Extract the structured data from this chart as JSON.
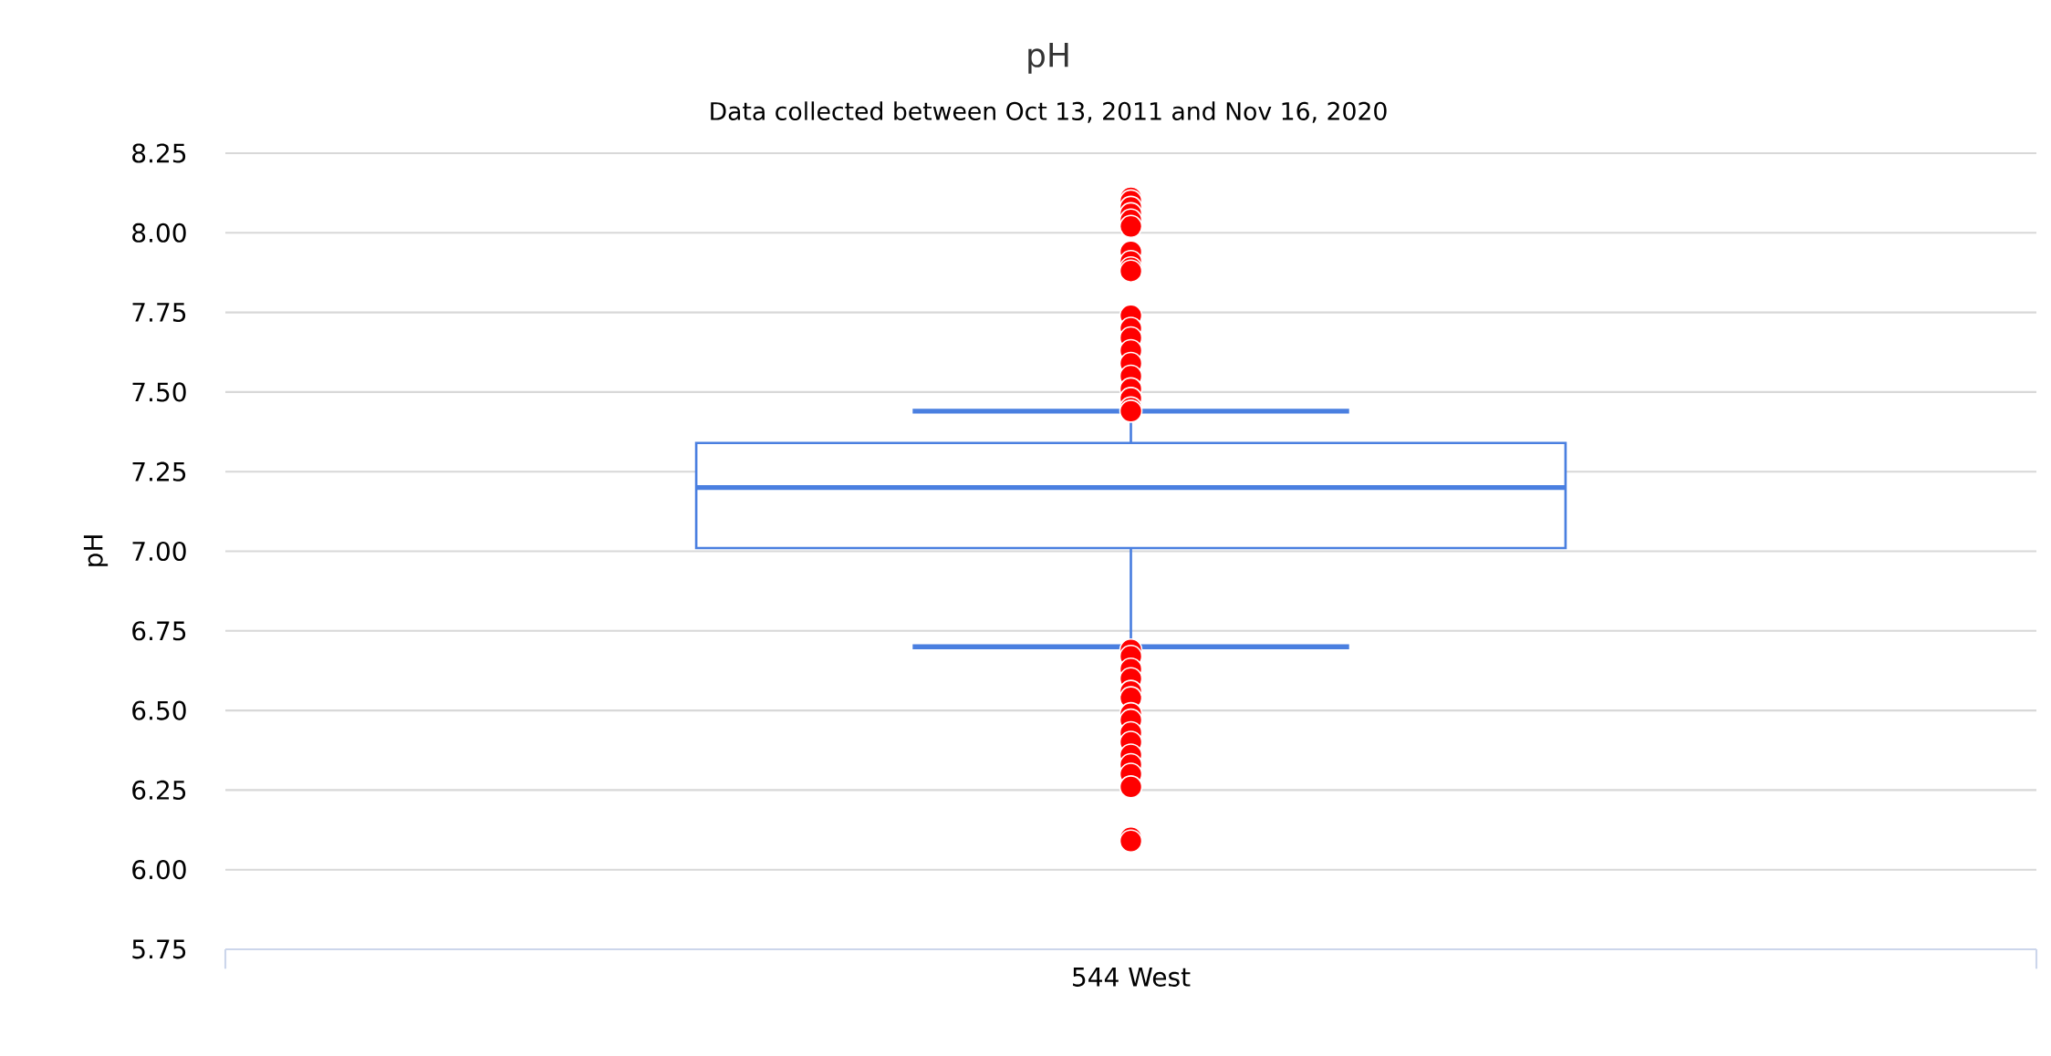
{
  "chart_data": {
    "type": "box",
    "title": "pH",
    "subtitle": "Data collected between Oct 13, 2011 and Nov 16, 2020",
    "ylabel": "pH",
    "categories": [
      "544 West"
    ],
    "series": [
      {
        "color": "#4a7fe0",
        "boxes": [
          {
            "low": 6.7,
            "q1": 7.01,
            "median": 7.2,
            "q3": 7.34,
            "high": 7.44,
            "outliers": [
              8.11,
              8.1,
              8.08,
              8.06,
              8.04,
              8.02,
              7.94,
              7.91,
              7.89,
              7.88,
              7.74,
              7.7,
              7.67,
              7.63,
              7.59,
              7.55,
              7.51,
              7.48,
              7.45,
              7.44,
              6.69,
              6.67,
              6.63,
              6.6,
              6.56,
              6.54,
              6.49,
              6.47,
              6.43,
              6.4,
              6.36,
              6.33,
              6.3,
              6.26,
              6.1,
              6.09
            ]
          }
        ]
      }
    ],
    "marker": "circle",
    "ylim": [
      5.75,
      8.25
    ],
    "yticks": [
      {
        "value": 5.75,
        "label": "5.75"
      },
      {
        "value": 6,
        "label": "6.00"
      },
      6.25,
      {
        "value": 6.5,
        "label": "6.50"
      },
      6.75,
      {
        "value": 7,
        "label": "7.00"
      },
      7.25,
      {
        "value": 7.5,
        "label": "7.50"
      },
      7.75,
      {
        "value": 8,
        "label": "8.00"
      },
      8.25
    ],
    "grid": "y"
  }
}
